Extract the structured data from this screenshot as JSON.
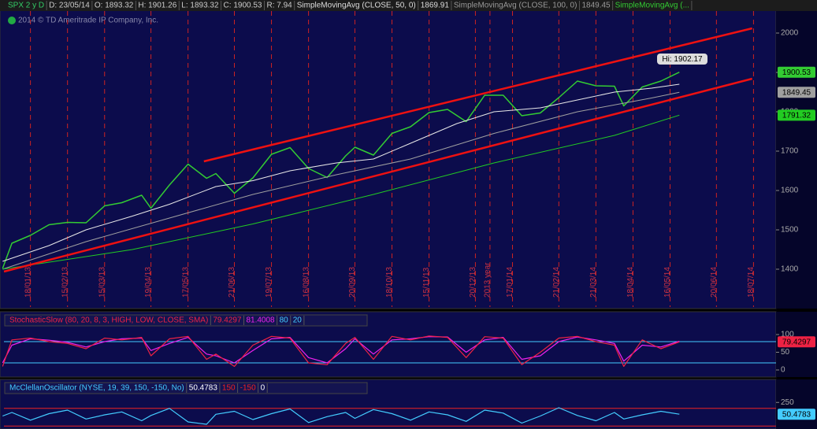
{
  "chart_data": [
    {
      "type": "line",
      "header": [
        {
          "text": "SPX 2 y D",
          "color": "#33cc66"
        },
        {
          "text": "D: 23/05/14",
          "color": "#cccccc"
        },
        {
          "text": "O: 1893.32",
          "color": "#cccccc"
        },
        {
          "text": "H: 1901.26",
          "color": "#cccccc"
        },
        {
          "text": "L: 1893.32",
          "color": "#cccccc"
        },
        {
          "text": "C: 1900.53",
          "color": "#cccccc"
        },
        {
          "text": "R: 7.94",
          "color": "#cccccc"
        },
        {
          "text": "SimpleMovingAvg (CLOSE, 50, 0)",
          "color": "#dddddd"
        },
        {
          "text": "1869.91",
          "color": "#dddddd"
        },
        {
          "text": "SimpleMovingAvg (CLOSE, 100, 0)",
          "color": "#999999"
        },
        {
          "text": "1849.45",
          "color": "#999999"
        },
        {
          "text": "SimpleMovingAvg (...",
          "color": "#33cc33"
        }
      ],
      "watermark": "2014 © TD Ameritrade IP Company, Inc.",
      "annotations": [
        {
          "text": "Hi: 1902.17"
        }
      ],
      "xlim": [
        "29/12/12",
        "04/08/14"
      ],
      "xticks": [
        "18/01/13",
        "15/02/13",
        "15/03/13",
        "19/04/13",
        "17/05/13",
        "21/06/13",
        "19/07/13",
        "16/08/13",
        "20/09/13",
        "18/10/13",
        "15/11/13",
        "20/12/13",
        {
          "value": "31/12/13",
          "label": "2013 year"
        },
        "17/01/14",
        "21/02/14",
        "21/03/14",
        "18/04/14",
        "16/05/14",
        "20/06/14",
        "18/07/14"
      ],
      "ylim": [
        1304,
        2056
      ],
      "yticks": [
        1400,
        1500,
        1600,
        1700,
        1800,
        1900,
        2000
      ],
      "series": [
        {
          "color": "#33cc33",
          "width": 1.5,
          "last_label": "#33cc33",
          "x": [
            "28/12/12",
            "04/01/13",
            "18/01/13",
            "01/02/13",
            "15/02/13",
            "01/03/13",
            "15/03/13",
            "28/03/13",
            "12/04/13",
            "19/04/13",
            "03/05/13",
            "17/05/13",
            "31/05/13",
            "07/06/13",
            "21/06/13",
            "05/07/13",
            "19/07/13",
            "02/08/13",
            "16/08/13",
            "30/08/13",
            "13/09/13",
            "20/09/13",
            "04/10/13",
            "18/10/13",
            "01/11/13",
            "15/11/13",
            "29/11/13",
            "13/12/13",
            "27/12/13",
            "10/01/14",
            "24/01/14",
            "07/02/14",
            "21/02/14",
            "07/03/14",
            "21/03/14",
            "04/04/14",
            "11/04/14",
            "25/04/14",
            "09/05/14",
            "23/05/14"
          ],
          "values": [
            1402,
            1466,
            1486,
            1513,
            1519,
            1518,
            1561,
            1569,
            1588,
            1555,
            1614,
            1667,
            1631,
            1643,
            1593,
            1632,
            1692,
            1709,
            1656,
            1633,
            1688,
            1710,
            1690,
            1745,
            1762,
            1798,
            1806,
            1775,
            1842,
            1842,
            1790,
            1797,
            1836,
            1878,
            1866,
            1865,
            1815,
            1863,
            1878,
            1900.53
          ]
        },
        {
          "color": "#e8e8e8",
          "width": 1,
          "x": [
            "28/12/12",
            "01/02/13",
            "01/03/13",
            "05/04/13",
            "03/05/13",
            "07/06/13",
            "05/07/13",
            "02/08/13",
            "06/09/13",
            "04/10/13",
            "01/11/13",
            "06/12/13",
            "03/01/14",
            "07/02/14",
            "07/03/14",
            "04/04/14",
            "02/05/14",
            "23/05/14"
          ],
          "values": [
            1420,
            1460,
            1500,
            1535,
            1565,
            1610,
            1625,
            1650,
            1670,
            1680,
            1720,
            1770,
            1800,
            1810,
            1830,
            1850,
            1860,
            1869.91
          ]
        },
        {
          "color": "#a0a0a0",
          "width": 1,
          "last_label": "#a0a0a0",
          "x": [
            "28/12/12",
            "01/03/13",
            "03/05/13",
            "05/07/13",
            "06/09/13",
            "01/11/13",
            "03/01/14",
            "07/03/14",
            "02/05/14",
            "23/05/14"
          ],
          "values": [
            1400,
            1470,
            1530,
            1590,
            1640,
            1680,
            1745,
            1800,
            1835,
            1849.45
          ]
        },
        {
          "color": "#22cc22",
          "width": 1,
          "last_label": "#22cc22",
          "x": [
            "28/12/12",
            "05/04/13",
            "05/07/13",
            "04/10/13",
            "03/01/14",
            "04/04/14",
            "23/05/14"
          ],
          "values": [
            1400,
            1450,
            1515,
            1590,
            1670,
            1740,
            1791.32
          ]
        },
        {
          "color": "#ee1111",
          "width": 2.5,
          "x": [
            "29/05/13",
            "17/07/14"
          ],
          "values": [
            1674,
            2012
          ]
        },
        {
          "color": "#ee1111",
          "width": 2.5,
          "x": [
            "29/12/12",
            "17/07/14"
          ],
          "values": [
            1394,
            1884
          ]
        }
      ]
    },
    {
      "type": "line",
      "header": [
        {
          "text": "StochasticSlow (80, 20, 8, 3, HIGH, LOW, CLOSE, SMA)",
          "color": "#ee2244"
        },
        {
          "text": "79.4297",
          "color": "#ee2244"
        },
        {
          "text": "81.4008",
          "color": "#ee22ee"
        },
        {
          "text": "80",
          "color": "#44ccff"
        },
        {
          "text": "20",
          "color": "#44ccff"
        }
      ],
      "xlim": [
        "29/12/12",
        "04/08/14"
      ],
      "ylim": [
        0,
        100
      ],
      "yticks": [
        0,
        50,
        100
      ],
      "levels": [
        {
          "value": 80,
          "color": "#44ccff"
        },
        {
          "value": 20,
          "color": "#44ccff"
        }
      ],
      "series": [
        {
          "color": "#ee22ee",
          "width": 1.2,
          "x": [
            "28/12/12",
            "04/01/13",
            "18/01/13",
            "01/02/13",
            "15/02/13",
            "01/03/13",
            "15/03/13",
            "28/03/13",
            "12/04/13",
            "19/04/13",
            "03/05/13",
            "17/05/13",
            "31/05/13",
            "07/06/13",
            "21/06/13",
            "05/07/13",
            "19/07/13",
            "02/08/13",
            "16/08/13",
            "30/08/13",
            "13/09/13",
            "20/09/13",
            "04/10/13",
            "18/10/13",
            "01/11/13",
            "15/11/13",
            "29/11/13",
            "13/12/13",
            "27/12/13",
            "10/01/14",
            "24/01/14",
            "07/02/14",
            "21/02/14",
            "07/03/14",
            "21/03/14",
            "04/04/14",
            "11/04/14",
            "25/04/14",
            "09/05/14",
            "23/05/14"
          ],
          "values": [
            20,
            70,
            88,
            84,
            78,
            65,
            80,
            88,
            90,
            55,
            75,
            92,
            45,
            40,
            20,
            55,
            88,
            92,
            35,
            20,
            60,
            88,
            45,
            85,
            88,
            94,
            93,
            50,
            85,
            92,
            30,
            40,
            80,
            93,
            85,
            75,
            25,
            70,
            65,
            81.4008
          ]
        },
        {
          "color": "#ee2244",
          "width": 1.2,
          "last_label": "#ee2244",
          "x": [
            "28/12/12",
            "04/01/13",
            "18/01/13",
            "01/02/13",
            "15/02/13",
            "01/03/13",
            "15/03/13",
            "28/03/13",
            "12/04/13",
            "19/04/13",
            "03/05/13",
            "17/05/13",
            "31/05/13",
            "07/06/13",
            "21/06/13",
            "05/07/13",
            "19/07/13",
            "02/08/13",
            "16/08/13",
            "30/08/13",
            "13/09/13",
            "20/09/13",
            "04/10/13",
            "18/10/13",
            "01/11/13",
            "15/11/13",
            "29/11/13",
            "13/12/13",
            "27/12/13",
            "10/01/14",
            "24/01/14",
            "07/02/14",
            "21/02/14",
            "07/03/14",
            "21/03/14",
            "04/04/14",
            "11/04/14",
            "25/04/14",
            "09/05/14",
            "23/05/14"
          ],
          "values": [
            10,
            85,
            90,
            80,
            75,
            60,
            90,
            85,
            92,
            40,
            88,
            95,
            30,
            45,
            10,
            70,
            95,
            90,
            20,
            15,
            75,
            92,
            30,
            95,
            85,
            96,
            92,
            35,
            94,
            90,
            15,
            50,
            90,
            95,
            80,
            70,
            10,
            85,
            60,
            79.4297
          ]
        }
      ]
    },
    {
      "type": "line",
      "header": [
        {
          "text": "McClellanOscillator (NYSE, 19, 39, 150, -150, No)",
          "color": "#44ccff"
        },
        {
          "text": "50.4783",
          "color": "#ffffff"
        },
        {
          "text": "150",
          "color": "#ee2222"
        },
        {
          "text": "-150",
          "color": "#ee2222"
        },
        {
          "text": "0",
          "color": "#ffffff"
        }
      ],
      "xlim": [
        "29/12/12",
        "04/08/14"
      ],
      "ylim": [
        -200,
        440
      ],
      "yticks": [
        250
      ],
      "levels": [
        {
          "value": 150,
          "color": "#ee2222"
        },
        {
          "value": -150,
          "color": "#ee2222"
        }
      ],
      "series": [
        {
          "color": "#44ccff",
          "width": 1.2,
          "last_label": "#44ccff",
          "x": [
            "28/12/12",
            "04/01/13",
            "18/01/13",
            "01/02/13",
            "15/02/13",
            "01/03/13",
            "15/03/13",
            "28/03/13",
            "12/04/13",
            "19/04/13",
            "03/05/13",
            "17/05/13",
            "31/05/13",
            "07/06/13",
            "21/06/13",
            "05/07/13",
            "19/07/13",
            "02/08/13",
            "16/08/13",
            "30/08/13",
            "13/09/13",
            "20/09/13",
            "04/10/13",
            "18/10/13",
            "01/11/13",
            "15/11/13",
            "29/11/13",
            "13/12/13",
            "27/12/13",
            "10/01/14",
            "24/01/14",
            "07/02/14",
            "21/02/14",
            "07/03/14",
            "21/03/14",
            "04/04/14",
            "11/04/14",
            "25/04/14",
            "09/05/14",
            "23/05/14"
          ],
          "values": [
            20,
            80,
            -50,
            60,
            120,
            -30,
            40,
            90,
            -60,
            30,
            150,
            -80,
            -120,
            50,
            100,
            -40,
            60,
            140,
            -90,
            10,
            80,
            -20,
            130,
            60,
            -50,
            90,
            40,
            -70,
            120,
            70,
            -100,
            20,
            160,
            30,
            -60,
            80,
            -30,
            40,
            100,
            50.4783
          ]
        }
      ]
    }
  ]
}
